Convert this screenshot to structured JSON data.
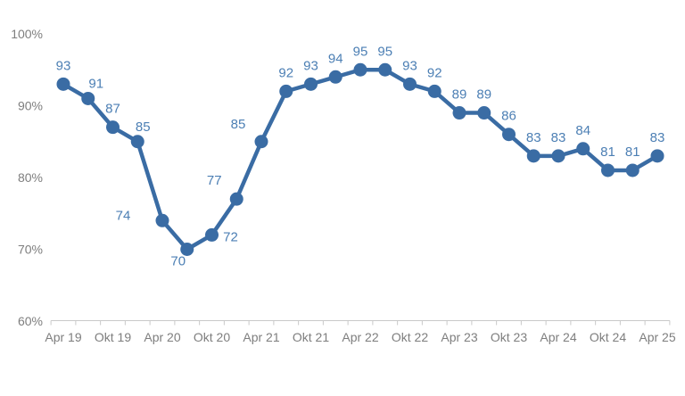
{
  "chart_data": {
    "type": "line",
    "title": "",
    "xlabel": "",
    "ylabel": "",
    "values": [
      93,
      91,
      87,
      85,
      74,
      70,
      72,
      77,
      85,
      92,
      93,
      94,
      95,
      95,
      93,
      92,
      89,
      89,
      86,
      83,
      83,
      84,
      81,
      81,
      83
    ],
    "x_tick_labels": [
      "Apr 19",
      "Okt 19",
      "Apr 20",
      "Okt 20",
      "Apr 21",
      "Okt 21",
      "Apr 22",
      "Okt 22",
      "Apr 23",
      "Okt 23",
      "Apr 24",
      "Okt 24",
      "Apr 25"
    ],
    "x_tick_every": 2,
    "y_ticks": [
      {
        "value": 100,
        "label": "100%"
      },
      {
        "value": 90,
        "label": "90%"
      },
      {
        "value": 80,
        "label": "80%"
      },
      {
        "value": 70,
        "label": "70%"
      },
      {
        "value": 60,
        "label": "60%"
      }
    ],
    "ylim": [
      60,
      100
    ],
    "grid": false,
    "legend": "none",
    "data_labels_visible": true,
    "colors": {
      "line": "#3A6CA4",
      "marker": "#3A6CA4",
      "data_label": "#4C7FB4",
      "axis_text": "#7E7E7E",
      "axis_line": "#C9C9C9",
      "background": "#FFFFFF"
    },
    "label_offsets": {
      "default": [
        0,
        -21
      ],
      "overrides": {
        "1": [
          9,
          -17
        ],
        "3": [
          6,
          -17
        ],
        "4": [
          -44,
          -6
        ],
        "5": [
          -10,
          13
        ],
        "6": [
          21,
          2
        ],
        "7": [
          -25,
          -21
        ],
        "8": [
          -26,
          -20
        ]
      }
    }
  }
}
